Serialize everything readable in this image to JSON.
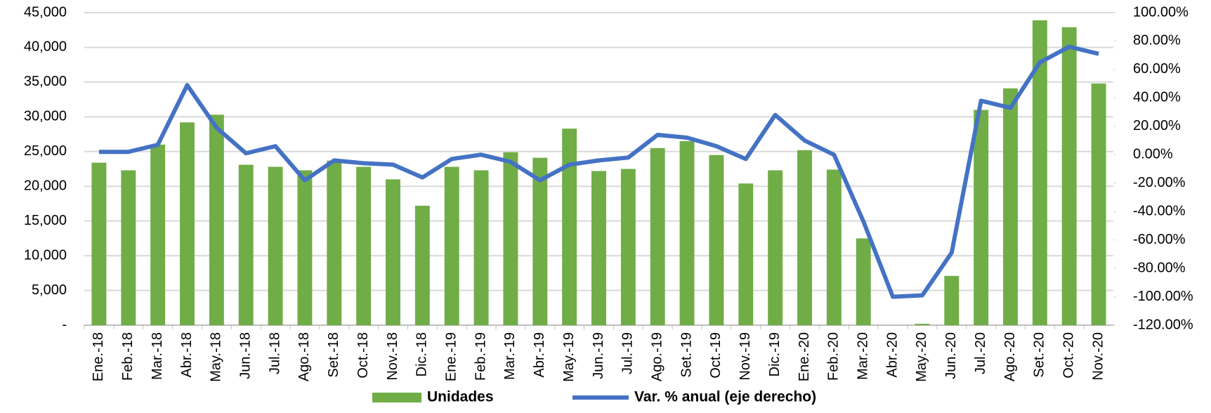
{
  "chart_data": {
    "type": "bar_line",
    "categories": [
      "Ene.-18",
      "Feb.-18",
      "Mar.-18",
      "Abr.-18",
      "May.-18",
      "Jun.-18",
      "Jul.-18",
      "Ago.-18",
      "Set.-18",
      "Oct.-18",
      "Nov.-18",
      "Dic.-18",
      "Ene.-19",
      "Feb.-19",
      "Mar.-19",
      "Abr.-19",
      "May.-19",
      "Jun.-19",
      "Jul.-19",
      "Ago.-19",
      "Set.-19",
      "Oct.-19",
      "Nov.-19",
      "Dic.-19",
      "Ene.-20",
      "Feb.-20",
      "Mar.-20",
      "Abr.-20",
      "May.-20",
      "Jun.-20",
      "Jul.-20",
      "Ago.-20",
      "Set.-20",
      "Oct.-20",
      "Nov.-20"
    ],
    "series": [
      {
        "name": "Unidades",
        "type": "bar",
        "color": "#70ad47",
        "values": [
          23400,
          22300,
          26000,
          29200,
          30300,
          23100,
          22800,
          22300,
          23700,
          22800,
          21000,
          17200,
          22800,
          22300,
          24900,
          24100,
          28300,
          22200,
          22500,
          25500,
          26500,
          24500,
          20400,
          22300,
          25200,
          22400,
          12500,
          0,
          200,
          7100,
          31000,
          34100,
          43900,
          42900,
          34800
        ]
      },
      {
        "name": "Var. % anual (eje derecho)",
        "type": "line",
        "axis": "y2",
        "color": "#4472c4",
        "values": [
          2,
          2,
          7,
          49,
          19,
          1,
          6,
          -18,
          -4,
          -6,
          -7,
          -16,
          -3,
          0,
          -5,
          -18,
          -7,
          -4,
          -2,
          14,
          12,
          6,
          -3,
          28,
          10,
          0,
          -47,
          -100,
          -99,
          -69,
          38,
          33,
          65,
          76,
          71
        ]
      }
    ],
    "ylim": [
      0,
      45000
    ],
    "yticks": [
      {
        "value": 0,
        "label": "-"
      },
      {
        "value": 5000,
        "label": "5,000"
      },
      {
        "value": 10000,
        "label": "10,000"
      },
      {
        "value": 15000,
        "label": "15,000"
      },
      {
        "value": 20000,
        "label": "20,000"
      },
      {
        "value": 25000,
        "label": "25,000"
      },
      {
        "value": 30000,
        "label": "30,000"
      },
      {
        "value": 35000,
        "label": "35,000"
      },
      {
        "value": 40000,
        "label": "40,000"
      },
      {
        "value": 45000,
        "label": "45,000"
      }
    ],
    "y2lim": [
      -120,
      100
    ],
    "y2ticks": [
      {
        "value": -120,
        "label": "-120.00%"
      },
      {
        "value": -100,
        "label": "-100.00%"
      },
      {
        "value": -80,
        "label": "-80.00%"
      },
      {
        "value": -60,
        "label": "-60.00%"
      },
      {
        "value": -40,
        "label": "-40.00%"
      },
      {
        "value": -20,
        "label": "-20.00%"
      },
      {
        "value": 0,
        "label": "0.00%"
      },
      {
        "value": 20,
        "label": "20.00%"
      },
      {
        "value": 40,
        "label": "40.00%"
      },
      {
        "value": 60,
        "label": "60.00%"
      },
      {
        "value": 80,
        "label": "80.00%"
      },
      {
        "value": 100,
        "label": "100.00%"
      }
    ],
    "grid": true,
    "legend": "bottom"
  }
}
